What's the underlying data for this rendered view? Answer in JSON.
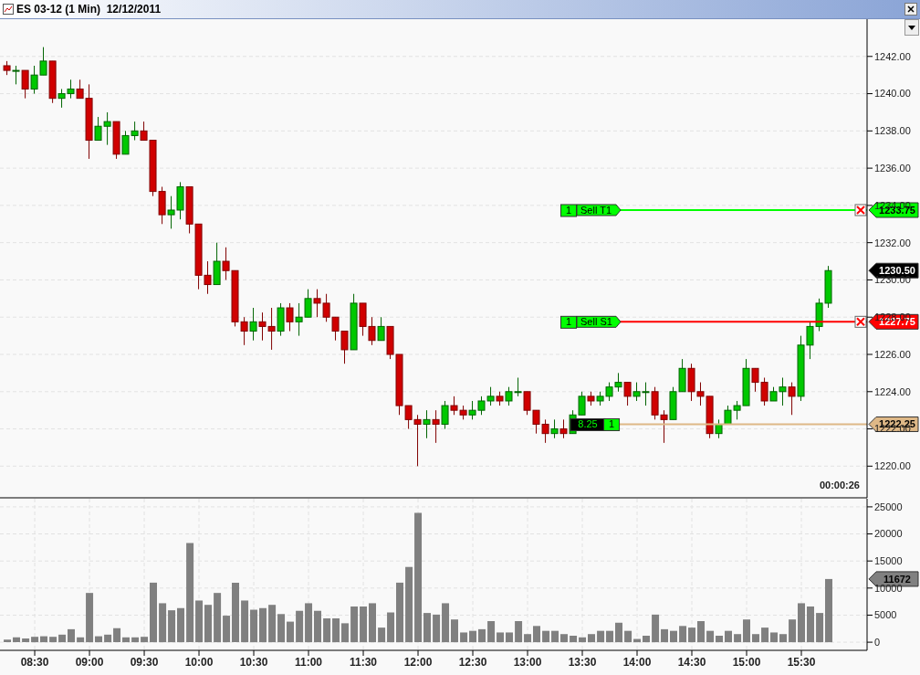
{
  "chart_data": [
    {
      "type": "candlestick",
      "title": "ES 03-12 (1 Min)  12/12/2011",
      "x": [
        8.25,
        8.333,
        8.417,
        8.5,
        8.583,
        8.667,
        8.75,
        8.833,
        8.917,
        9,
        9.083,
        9.167,
        9.25,
        9.333,
        9.417,
        9.5,
        9.583,
        9.667,
        9.75,
        9.833,
        9.917,
        10,
        10.083,
        10.167,
        10.25,
        10.333,
        10.417,
        10.5,
        10.583,
        10.667,
        10.75,
        10.833,
        10.917,
        11,
        11.083,
        11.167,
        11.25,
        11.333,
        11.417,
        11.5,
        11.583,
        11.667,
        11.75,
        11.833,
        11.917,
        12,
        12.083,
        12.167,
        12.25,
        12.333,
        12.417,
        12.5,
        12.583,
        12.667,
        12.75,
        12.833,
        12.917,
        13,
        13.083,
        13.167,
        13.25,
        13.333,
        13.417,
        13.5,
        13.583,
        13.667,
        13.75,
        13.833,
        13.917,
        14,
        14.083,
        14.167,
        14.25,
        14.333,
        14.417,
        14.5,
        14.583,
        14.667,
        14.75,
        14.833,
        14.917,
        15,
        15.083,
        15.167,
        15.25,
        15.333,
        15.417,
        15.5,
        15.583,
        15.667,
        15.75
      ],
      "ohlc": [
        [
          1241.5,
          1241.75,
          1241,
          1241.25
        ],
        [
          1241.25,
          1241.5,
          1240.5,
          1241.25
        ],
        [
          1241.25,
          1241.25,
          1239.75,
          1240.25
        ],
        [
          1240.25,
          1241.5,
          1240,
          1241
        ],
        [
          1241,
          1242.5,
          1241,
          1241.75
        ],
        [
          1241.75,
          1241.75,
          1239.5,
          1239.75
        ],
        [
          1239.75,
          1240.25,
          1239.25,
          1240
        ],
        [
          1240,
          1240.75,
          1239.75,
          1240.25
        ],
        [
          1240.25,
          1240.75,
          1239.75,
          1239.75
        ],
        [
          1239.75,
          1240.5,
          1236.5,
          1237.5
        ],
        [
          1237.5,
          1238.75,
          1237.5,
          1238.25
        ],
        [
          1238.25,
          1239,
          1237.25,
          1238.5
        ],
        [
          1238.5,
          1238.5,
          1236.5,
          1236.75
        ],
        [
          1236.75,
          1238,
          1236.75,
          1237.75
        ],
        [
          1237.75,
          1238.5,
          1237.5,
          1238
        ],
        [
          1238,
          1238.5,
          1237.5,
          1237.5
        ],
        [
          1237.5,
          1237.5,
          1234.5,
          1234.75
        ],
        [
          1234.75,
          1235,
          1233,
          1233.5
        ],
        [
          1233.5,
          1234.5,
          1232.75,
          1233.75
        ],
        [
          1233.75,
          1235.25,
          1233.25,
          1235
        ],
        [
          1235,
          1235,
          1232.5,
          1233
        ],
        [
          1233,
          1233,
          1229.5,
          1230.25
        ],
        [
          1230.25,
          1231,
          1229.25,
          1229.75
        ],
        [
          1229.75,
          1232,
          1229.75,
          1231
        ],
        [
          1231,
          1231.75,
          1230,
          1230.5
        ],
        [
          1230.5,
          1230.5,
          1227.5,
          1227.75
        ],
        [
          1227.75,
          1228,
          1226.5,
          1227.25
        ],
        [
          1227.25,
          1228.5,
          1226.75,
          1227.75
        ],
        [
          1227.75,
          1228.25,
          1226.75,
          1227.5
        ],
        [
          1227.5,
          1228.5,
          1226.25,
          1227.25
        ],
        [
          1227.25,
          1228.75,
          1227,
          1228.5
        ],
        [
          1228.5,
          1228.75,
          1227.25,
          1227.75
        ],
        [
          1227.75,
          1228.75,
          1227,
          1228
        ],
        [
          1228,
          1229.5,
          1228,
          1229
        ],
        [
          1229,
          1229.5,
          1228,
          1228.75
        ],
        [
          1228.75,
          1229.25,
          1227.75,
          1228
        ],
        [
          1228,
          1228,
          1226.75,
          1227.25
        ],
        [
          1227.25,
          1227.25,
          1225.5,
          1226.25
        ],
        [
          1226.25,
          1229.25,
          1226.25,
          1228.75
        ],
        [
          1228.75,
          1228.75,
          1227,
          1227.5
        ],
        [
          1227.5,
          1228,
          1226.5,
          1226.75
        ],
        [
          1226.75,
          1228,
          1226.75,
          1227.5
        ],
        [
          1227.5,
          1227.5,
          1225.75,
          1226
        ],
        [
          1226,
          1226,
          1222.75,
          1223.25
        ],
        [
          1223.25,
          1223.25,
          1222,
          1222.5
        ],
        [
          1222.5,
          1222.75,
          1220,
          1222.25
        ],
        [
          1222.25,
          1223,
          1221.5,
          1222.5
        ],
        [
          1222.5,
          1223,
          1221.25,
          1222.25
        ],
        [
          1222.25,
          1223.5,
          1222,
          1223.25
        ],
        [
          1223.25,
          1223.75,
          1222.75,
          1223
        ],
        [
          1223,
          1223.25,
          1222.5,
          1222.75
        ],
        [
          1222.75,
          1223.5,
          1222.5,
          1223
        ],
        [
          1223,
          1223.75,
          1222.75,
          1223.5
        ],
        [
          1223.5,
          1224.25,
          1223.25,
          1223.75
        ],
        [
          1223.75,
          1224,
          1223.25,
          1223.5
        ],
        [
          1223.5,
          1224.25,
          1223.25,
          1224
        ],
        [
          1224,
          1224.75,
          1223.75,
          1224
        ],
        [
          1224,
          1224,
          1222.75,
          1223
        ],
        [
          1223,
          1223,
          1221.75,
          1222.25
        ],
        [
          1222.25,
          1222.5,
          1221.25,
          1221.75
        ],
        [
          1221.75,
          1222.5,
          1221.5,
          1222
        ],
        [
          1222,
          1222.5,
          1221.5,
          1221.75
        ],
        [
          1221.75,
          1223,
          1221.75,
          1222.75
        ],
        [
          1222.75,
          1224,
          1222.75,
          1223.75
        ],
        [
          1223.75,
          1224,
          1223.25,
          1223.5
        ],
        [
          1223.5,
          1224,
          1223.25,
          1223.75
        ],
        [
          1223.75,
          1224.5,
          1223.5,
          1224.25
        ],
        [
          1224.25,
          1225,
          1224,
          1224.5
        ],
        [
          1224.5,
          1224.5,
          1223.25,
          1223.75
        ],
        [
          1223.75,
          1224.5,
          1223.5,
          1224
        ],
        [
          1224,
          1224.5,
          1223.25,
          1224
        ],
        [
          1224,
          1224.25,
          1222.5,
          1222.75
        ],
        [
          1222.75,
          1223,
          1221.25,
          1222.5
        ],
        [
          1222.5,
          1224.25,
          1222.5,
          1224
        ],
        [
          1224,
          1225.75,
          1224,
          1225.25
        ],
        [
          1225.25,
          1225.5,
          1223.5,
          1224
        ],
        [
          1224,
          1224.5,
          1223.25,
          1223.75
        ],
        [
          1223.75,
          1223.75,
          1221.5,
          1221.75
        ],
        [
          1221.75,
          1222.5,
          1221.5,
          1222.25
        ],
        [
          1222.25,
          1223.25,
          1222.25,
          1223
        ],
        [
          1223,
          1223.5,
          1222.5,
          1223.25
        ],
        [
          1223.25,
          1225.75,
          1223.25,
          1225.25
        ],
        [
          1225.25,
          1225.25,
          1224,
          1224.5
        ],
        [
          1224.5,
          1224.75,
          1223.25,
          1223.5
        ],
        [
          1223.5,
          1224.25,
          1223.5,
          1224
        ],
        [
          1224,
          1224.75,
          1223.25,
          1224.25
        ],
        [
          1224.25,
          1224.5,
          1222.75,
          1223.75
        ],
        [
          1223.75,
          1227,
          1223.5,
          1226.5
        ],
        [
          1226.5,
          1227.75,
          1225.75,
          1227.5
        ],
        [
          1227.5,
          1229,
          1227.25,
          1228.75
        ],
        [
          1228.75,
          1230.75,
          1228.5,
          1230.5
        ]
      ],
      "xlim": [
        8.183,
        16.1
      ],
      "xticks": [
        {
          "value": 8.5,
          "label": null
        },
        {
          "value": 9,
          "label": null
        },
        {
          "value": 9.5,
          "label": null
        },
        {
          "value": 10,
          "label": null
        },
        {
          "value": 10.5,
          "label": null
        },
        {
          "value": 11,
          "label": null
        },
        {
          "value": 11.5,
          "label": null
        },
        {
          "value": 12,
          "label": null
        },
        {
          "value": 12.5,
          "label": null
        },
        {
          "value": 13,
          "label": null
        },
        {
          "value": 13.5,
          "label": null
        },
        {
          "value": 14,
          "label": null
        },
        {
          "value": 14.5,
          "label": null
        },
        {
          "value": 15,
          "label": null
        },
        {
          "value": 15.5,
          "label": null
        }
      ],
      "ylim": [
        1218.3,
        1244
      ],
      "yticks": [
        {
          "value": 1220,
          "label": "1220.00"
        },
        {
          "value": 1222,
          "label": "1222.00"
        },
        {
          "value": 1224,
          "label": "1224.00"
        },
        {
          "value": 1226,
          "label": "1226.00"
        },
        {
          "value": 1228,
          "label": "1228.00"
        },
        {
          "value": 1230,
          "label": "1230.00"
        },
        {
          "value": 1232,
          "label": "1232.00"
        },
        {
          "value": 1234,
          "label": "1234.00"
        },
        {
          "value": 1236,
          "label": "1236.00"
        },
        {
          "value": 1238,
          "label": "1238.00"
        },
        {
          "value": 1240,
          "label": "1240.00"
        },
        {
          "value": 1242,
          "label": "1242.00"
        }
      ],
      "grid": true,
      "tick_labels": "y",
      "ref_lines": [
        {
          "axis": "y",
          "value": 1233.75,
          "label": "Sell T1",
          "color": "#00ff00"
        },
        {
          "axis": "y",
          "value": 1227.75,
          "label": "Sell S1",
          "color": "#ff0000"
        },
        {
          "axis": "y",
          "value": 1222.25,
          "label": null,
          "color": "#deb887"
        }
      ],
      "annotations": [
        {
          "text": "1",
          "x": 13.375,
          "y": 1233.75
        },
        {
          "text": "1",
          "x": 13.375,
          "y": 1227.75
        },
        {
          "text": "8.25",
          "x": 13.55,
          "y": 1222.25
        },
        {
          "text": "1",
          "x": 13.767,
          "y": 1222.25
        },
        "1233.75",
        "1227.75",
        "1222.25",
        "1230.50",
        "00:00:26"
      ]
    },
    {
      "type": "bar",
      "color": "#808080",
      "x": [
        8.25,
        8.333,
        8.417,
        8.5,
        8.583,
        8.667,
        8.75,
        8.833,
        8.917,
        9,
        9.083,
        9.167,
        9.25,
        9.333,
        9.417,
        9.5,
        9.583,
        9.667,
        9.75,
        9.833,
        9.917,
        10,
        10.083,
        10.167,
        10.25,
        10.333,
        10.417,
        10.5,
        10.583,
        10.667,
        10.75,
        10.833,
        10.917,
        11,
        11.083,
        11.167,
        11.25,
        11.333,
        11.417,
        11.5,
        11.583,
        11.667,
        11.75,
        11.833,
        11.917,
        12,
        12.083,
        12.167,
        12.25,
        12.333,
        12.417,
        12.5,
        12.583,
        12.667,
        12.75,
        12.833,
        12.917,
        13,
        13.083,
        13.167,
        13.25,
        13.333,
        13.417,
        13.5,
        13.583,
        13.667,
        13.75,
        13.833,
        13.917,
        14,
        14.083,
        14.167,
        14.25,
        14.333,
        14.417,
        14.5,
        14.583,
        14.667,
        14.75,
        14.833,
        14.917,
        15,
        15.083,
        15.167,
        15.25,
        15.333,
        15.417,
        15.5,
        15.583,
        15.667,
        15.75
      ],
      "values": [
        500,
        900,
        700,
        1000,
        1100,
        1000,
        1400,
        2400,
        900,
        9100,
        1100,
        1400,
        2600,
        900,
        900,
        1000,
        11000,
        7200,
        5900,
        6300,
        18300,
        7700,
        6900,
        9100,
        4900,
        11000,
        7700,
        6000,
        6300,
        6900,
        5200,
        3800,
        5800,
        7200,
        5800,
        4400,
        4400,
        3500,
        6600,
        6600,
        7200,
        2700,
        5500,
        11000,
        13900,
        23900,
        5400,
        5100,
        7200,
        4200,
        1800,
        2100,
        2400,
        3900,
        1800,
        1800,
        3900,
        1500,
        3000,
        2100,
        2100,
        1500,
        1200,
        900,
        1500,
        2100,
        2100,
        3600,
        2100,
        600,
        1200,
        5100,
        2400,
        2100,
        3000,
        2700,
        3900,
        2100,
        1200,
        2100,
        1500,
        4200,
        1500,
        2700,
        1800,
        1500,
        4200,
        7200,
        6600,
        5400,
        11672
      ],
      "xlim": [
        8.183,
        16.1
      ],
      "xticks": [
        {
          "value": 8.5,
          "label": "08:30"
        },
        {
          "value": 9,
          "label": "09:00"
        },
        {
          "value": 9.5,
          "label": "09:30"
        },
        {
          "value": 10,
          "label": "10:00"
        },
        {
          "value": 10.5,
          "label": "10:30"
        },
        {
          "value": 11,
          "label": "11:00"
        },
        {
          "value": 11.5,
          "label": "11:30"
        },
        {
          "value": 12,
          "label": "12:00"
        },
        {
          "value": 12.5,
          "label": "12:30"
        },
        {
          "value": 13,
          "label": "13:00"
        },
        {
          "value": 13.5,
          "label": "13:30"
        },
        {
          "value": 14,
          "label": "14:00"
        },
        {
          "value": 14.5,
          "label": "14:30"
        },
        {
          "value": 15,
          "label": "15:00"
        },
        {
          "value": 15.5,
          "label": "15:30"
        }
      ],
      "ylim": [
        -1500,
        26500
      ],
      "yticks": [
        0,
        5000,
        10000,
        15000,
        20000,
        25000
      ],
      "grid": true,
      "annotations": [
        "11672"
      ]
    }
  ]
}
